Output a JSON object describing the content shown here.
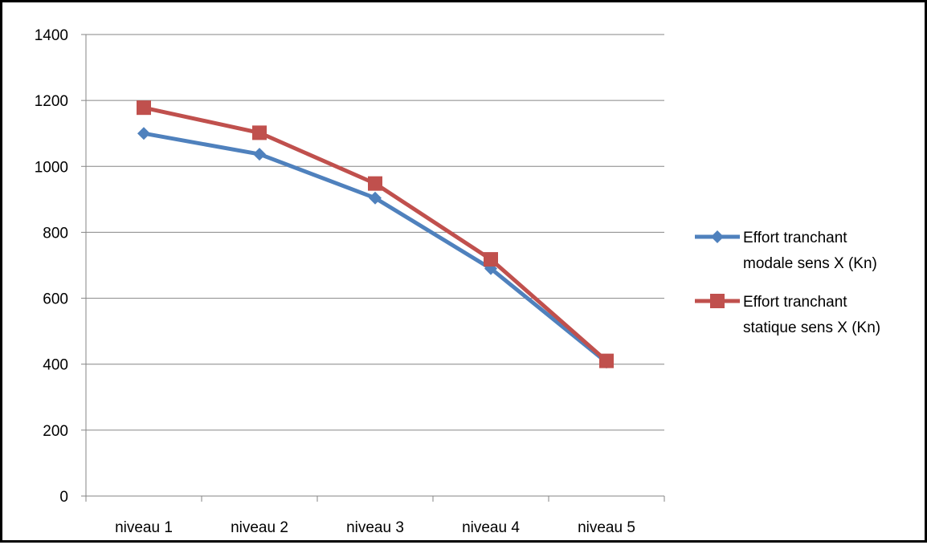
{
  "chart_data": {
    "type": "line",
    "title": "",
    "xlabel": "",
    "ylabel": "",
    "categories": [
      "niveau 1",
      "niveau 2",
      "niveau 3",
      "niveau 4",
      "niveau 5"
    ],
    "ylim": [
      0,
      1400
    ],
    "yticks": [
      0,
      200,
      400,
      600,
      800,
      1000,
      1200,
      1400
    ],
    "grid": "horizontal",
    "legend_position": "right",
    "series": [
      {
        "name": "Effort tranchant modale sens X (Kn)",
        "legend_lines": [
          "Effort tranchant",
          "modale sens X (Kn)"
        ],
        "color": "#4F81BD",
        "marker": "diamond",
        "values": [
          1100,
          1037,
          904,
          690,
          406
        ]
      },
      {
        "name": "Effort tranchant statique sens X (Kn)",
        "legend_lines": [
          "Effort tranchant",
          "statique sens X (Kn)"
        ],
        "color": "#C0504D",
        "marker": "square",
        "values": [
          1178,
          1102,
          948,
          718,
          410
        ]
      }
    ]
  }
}
